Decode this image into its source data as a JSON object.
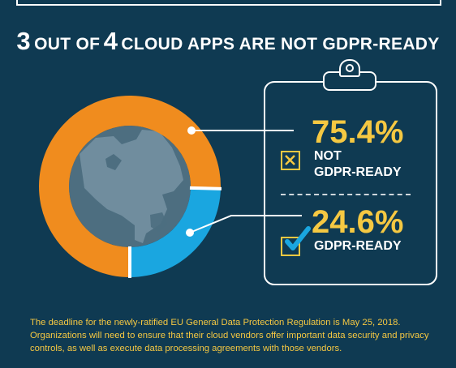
{
  "title": {
    "num1": "3",
    "text1": "OUT OF",
    "num2": "4",
    "text2": "CLOUD APPS ARE NOT GDPR-READY"
  },
  "chart_data": {
    "type": "pie",
    "categories": [
      "NOT GDPR-READY",
      "GDPR-READY"
    ],
    "values": [
      75.4,
      24.6
    ],
    "value_labels": [
      "75.4%",
      "24.6%"
    ],
    "colors": [
      "#f08c1e",
      "#1aa6e0"
    ],
    "style": "donut"
  },
  "legend": {
    "not_ready_pct": "75.4%",
    "not_ready_line1": "NOT",
    "not_ready_line2": "GDPR-READY",
    "ready_pct": "24.6%",
    "ready_label": "GDPR-READY"
  },
  "footnote": "The deadline for the newly-ratified EU General Data Protection Regulation is May 25, 2018. Organizations will need to ensure that their cloud vendors offer important data security and privacy controls, as well as execute data processing agreements with those vendors.",
  "colors": {
    "background": "#0f3a52",
    "accent": "#f5c842",
    "orange": "#f08c1e",
    "blue": "#1aa6e0",
    "globe": "#4d6e80",
    "land": "#7c98a8"
  },
  "icons": [
    "x-box-icon",
    "check-box-icon",
    "clipboard-icon",
    "globe-icon"
  ]
}
